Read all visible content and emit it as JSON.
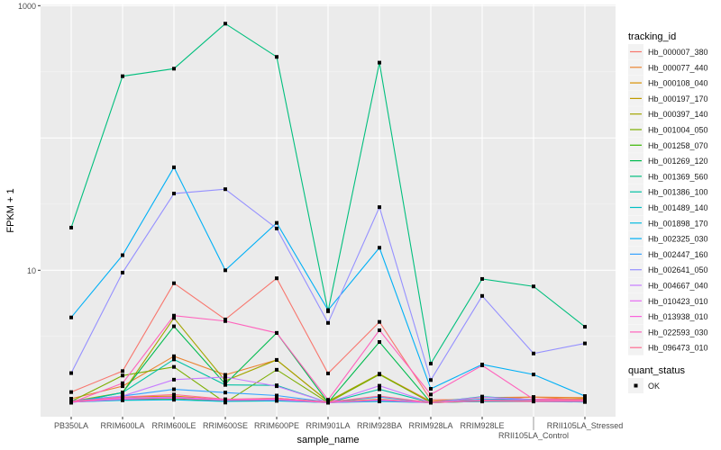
{
  "chart_data": {
    "type": "line",
    "xlabel": "sample_name",
    "ylabel": "FPKM + 1",
    "y_scale": "log10",
    "ylim": [
      0.8,
      1000
    ],
    "y_ticks": [
      {
        "value": 10,
        "label": "10"
      },
      {
        "value": 1000,
        "label": "1000"
      }
    ],
    "grid": true,
    "legend_placement": "right",
    "categories": [
      "PB350LA",
      "RRIM600LA",
      "RRIM600LE",
      "RRIM600SE",
      "RRIM600PE",
      "RRIM901LA",
      "RRIM928BA",
      "RRIM928LA",
      "RRIM928LE",
      "RRII105LA_Control",
      "RRII105LA_Stressed"
    ],
    "color_legend_title": "tracking_id",
    "shape_legend_title": "quant_status",
    "shape_legend_items": [
      "OK"
    ],
    "series": [
      {
        "name": "Hb_000007_380",
        "color": "#F8766D",
        "values": [
          1.2,
          1.73,
          7.98,
          4.25,
          8.7,
          1.66,
          4.07,
          1.05,
          1.05,
          1.1,
          1.05
        ]
      },
      {
        "name": "Hb_000077_440",
        "color": "#EA8331",
        "values": [
          1.07,
          1.33,
          2.24,
          1.62,
          2.1,
          1.02,
          1.64,
          1.02,
          1.09,
          1.1,
          1.09
        ]
      },
      {
        "name": "Hb_000108_040",
        "color": "#D89000",
        "values": [
          1.03,
          1.1,
          1.12,
          1.05,
          1.08,
          1.01,
          1.06,
          1.0,
          1.05,
          1.06,
          1.07
        ]
      },
      {
        "name": "Hb_000197_170",
        "color": "#C09B00",
        "values": [
          1.02,
          1.08,
          1.1,
          1.04,
          1.06,
          1.01,
          1.05,
          1.0,
          1.04,
          1.05,
          1.05
        ]
      },
      {
        "name": "Hb_000397_140",
        "color": "#A3A500",
        "values": [
          1.02,
          1.19,
          4.36,
          1.46,
          2.1,
          1.02,
          1.65,
          1.0,
          1.02,
          1.02,
          1.02
        ]
      },
      {
        "name": "Hb_001004_050",
        "color": "#7CAE00",
        "values": [
          1.02,
          1.6,
          1.86,
          1.0,
          1.77,
          1.0,
          1.63,
          1.0,
          1.03,
          1.03,
          1.03
        ]
      },
      {
        "name": "Hb_001258_070",
        "color": "#39B600",
        "values": [
          1.01,
          1.05,
          1.07,
          1.03,
          1.04,
          1.0,
          1.03,
          1.0,
          1.02,
          1.02,
          1.02
        ]
      },
      {
        "name": "Hb_001269_120",
        "color": "#00BB4E",
        "values": [
          1.0,
          1.19,
          3.77,
          1.38,
          3.36,
          1.0,
          2.87,
          1.0,
          1.05,
          1.04,
          1.04
        ]
      },
      {
        "name": "Hb_001369_560",
        "color": "#00BF7D",
        "values": [
          21,
          293,
          334,
          731,
          410,
          4.9,
          371,
          1.97,
          8.6,
          7.55,
          3.74
        ]
      },
      {
        "name": "Hb_001386_100",
        "color": "#00C1A3",
        "values": [
          1.0,
          1.19,
          2.12,
          1.36,
          1.35,
          1.0,
          1.26,
          1.0,
          1.11,
          1.05,
          1.04
        ]
      },
      {
        "name": "Hb_001489_140",
        "color": "#00BFC4",
        "values": [
          1.01,
          1.06,
          1.09,
          1.04,
          1.05,
          1.0,
          1.04,
          1.0,
          1.03,
          1.03,
          1.02
        ]
      },
      {
        "name": "Hb_001898_170",
        "color": "#00BAE0",
        "values": [
          1.01,
          1.04,
          1.05,
          1.02,
          1.03,
          1.0,
          1.02,
          1.0,
          1.02,
          1.02,
          1.01
        ]
      },
      {
        "name": "Hb_002325_030",
        "color": "#00B0F6",
        "values": [
          4.4,
          13,
          60,
          10,
          22.8,
          5.0,
          14.8,
          1.27,
          1.94,
          1.63,
          1.12
        ]
      },
      {
        "name": "Hb_002447_160",
        "color": "#35A2FF",
        "values": [
          1.03,
          1.12,
          1.26,
          1.19,
          1.13,
          1.01,
          1.1,
          1.0,
          1.06,
          1.05,
          1.04
        ]
      },
      {
        "name": "Hb_002641_050",
        "color": "#9590FF",
        "values": [
          1.67,
          9.6,
          38,
          41,
          20.7,
          4.0,
          30,
          1.48,
          6.4,
          2.35,
          2.8
        ]
      },
      {
        "name": "Hb_004667_040",
        "color": "#C77CFF",
        "values": [
          1.0,
          1.12,
          1.49,
          1.56,
          1.33,
          1.0,
          1.34,
          1.0,
          1.1,
          1.05,
          1.04
        ]
      },
      {
        "name": "Hb_010423_010",
        "color": "#E76BF3",
        "values": [
          1.02,
          1.08,
          1.1,
          1.05,
          1.06,
          1.0,
          1.05,
          1.0,
          1.04,
          1.03,
          1.03
        ]
      },
      {
        "name": "Hb_013938_010",
        "color": "#FA62DB",
        "values": [
          1.01,
          1.06,
          1.08,
          1.04,
          1.05,
          1.0,
          1.04,
          1.0,
          1.03,
          1.02,
          1.02
        ]
      },
      {
        "name": "Hb_022593_030",
        "color": "#FF62BC",
        "values": [
          1.0,
          1.4,
          4.54,
          4.13,
          3.36,
          1.05,
          3.52,
          1.15,
          1.91,
          1.06,
          1.05
        ]
      },
      {
        "name": "Hb_096473_010",
        "color": "#FF6C91",
        "values": [
          1.02,
          1.1,
          1.15,
          1.06,
          1.08,
          1.01,
          1.12,
          1.0,
          1.04,
          1.03,
          1.03
        ]
      }
    ]
  }
}
